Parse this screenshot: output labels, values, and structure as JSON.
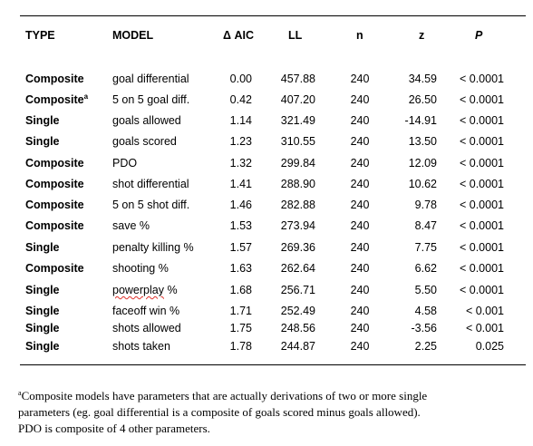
{
  "table": {
    "headers": {
      "type": "TYPE",
      "model": "MODEL",
      "aic": "Δ AIC",
      "ll": "LL",
      "n": "n",
      "z": "z",
      "p": "P"
    },
    "rows": [
      {
        "type": "Composite",
        "type_mark": "",
        "model": "goal differential",
        "aic": "0.00",
        "ll": "457.88",
        "n": "240",
        "z": "34.59",
        "p": "< 0.0001"
      },
      {
        "type": "Composite",
        "type_mark": "a",
        "model": "5 on 5 goal diff.",
        "aic": "0.42",
        "ll": "407.20",
        "n": "240",
        "z": "26.50",
        "p": "< 0.0001"
      },
      {
        "type": "Single",
        "type_mark": "",
        "model": "goals allowed",
        "aic": "1.14",
        "ll": "321.49",
        "n": "240",
        "z": "-14.91",
        "p": "< 0.0001"
      },
      {
        "type": "Single",
        "type_mark": "",
        "model": "goals scored",
        "aic": "1.23",
        "ll": "310.55",
        "n": "240",
        "z": "13.50",
        "p": "< 0.0001"
      },
      {
        "type": "Composite",
        "type_mark": "",
        "model": "PDO",
        "aic": "1.32",
        "ll": "299.84",
        "n": "240",
        "z": "12.09",
        "p": "< 0.0001"
      },
      {
        "type": "Composite",
        "type_mark": "",
        "model": "shot differential",
        "aic": "1.41",
        "ll": "288.90",
        "n": "240",
        "z": "10.62",
        "p": "< 0.0001"
      },
      {
        "type": "Composite",
        "type_mark": "",
        "model": "5 on 5 shot diff.",
        "aic": "1.46",
        "ll": "282.88",
        "n": "240",
        "z": "9.78",
        "p": "< 0.0001"
      },
      {
        "type": "Composite",
        "type_mark": "",
        "model": "save %",
        "aic": "1.53",
        "ll": "273.94",
        "n": "240",
        "z": "8.47",
        "p": "< 0.0001"
      },
      {
        "type": "Single",
        "type_mark": "",
        "model": "penalty killing %",
        "aic": "1.57",
        "ll": "269.36",
        "n": "240",
        "z": "7.75",
        "p": "< 0.0001"
      },
      {
        "type": "Composite",
        "type_mark": "",
        "model": "shooting %",
        "aic": "1.63",
        "ll": "262.64",
        "n": "240",
        "z": "6.62",
        "p": "< 0.0001"
      },
      {
        "type": "Single",
        "type_mark": "",
        "model": "powerplay %",
        "aic": "1.68",
        "ll": "256.71",
        "n": "240",
        "z": "5.50",
        "p": "< 0.0001"
      },
      {
        "type": "Single",
        "type_mark": "",
        "model": "faceoff win %",
        "aic": "1.71",
        "ll": "252.49",
        "n": "240",
        "z": "4.58",
        "p": "< 0.001"
      },
      {
        "type": "Single",
        "type_mark": "",
        "model": "shots allowed",
        "aic": "1.75",
        "ll": "248.56",
        "n": "240",
        "z": "-3.56",
        "p": "< 0.001"
      },
      {
        "type": "Single",
        "type_mark": "",
        "model": "shots taken",
        "aic": "1.78",
        "ll": "244.87",
        "n": "240",
        "z": "2.25",
        "p": "0.025"
      }
    ]
  },
  "footnote": {
    "marker": "a",
    "line1": "Composite models have parameters that are actually derivations of two or more single",
    "line2": "parameters (eg. goal differential is a composite of goals scored minus goals allowed).",
    "line3": "PDO is composite of 4 other parameters."
  }
}
